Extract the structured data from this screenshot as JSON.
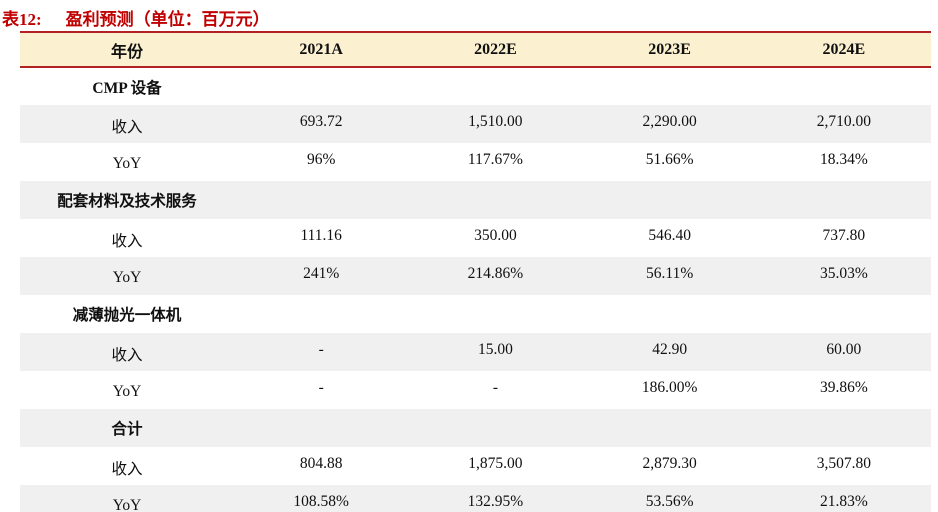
{
  "title": {
    "tag": "表12:",
    "text": "盈利预测（单位：百万元）"
  },
  "colors": {
    "title_red": "#C00000",
    "rule_red": "#B22222",
    "header_beige": "#FBF0D0",
    "stripe_gray": "#F0F0F0",
    "text": "#101010"
  },
  "table": {
    "columns": [
      "年份",
      "2021A",
      "2022E",
      "2023E",
      "2024E"
    ],
    "rows": [
      {
        "type": "section",
        "label": "CMP 设备",
        "values": [
          "",
          "",
          "",
          ""
        ]
      },
      {
        "type": "data",
        "label": "收入",
        "values": [
          "693.72",
          "1,510.00",
          "2,290.00",
          "2,710.00"
        ]
      },
      {
        "type": "data",
        "label": "YoY",
        "values": [
          "96%",
          "117.67%",
          "51.66%",
          "18.34%"
        ]
      },
      {
        "type": "section",
        "label": "配套材料及技术服务",
        "values": [
          "",
          "",
          "",
          ""
        ]
      },
      {
        "type": "data",
        "label": "收入",
        "values": [
          "111.16",
          "350.00",
          "546.40",
          "737.80"
        ]
      },
      {
        "type": "data",
        "label": "YoY",
        "values": [
          "241%",
          "214.86%",
          "56.11%",
          "35.03%"
        ]
      },
      {
        "type": "section",
        "label": "减薄抛光一体机",
        "values": [
          "",
          "",
          "",
          ""
        ]
      },
      {
        "type": "data",
        "label": "收入",
        "values": [
          "-",
          "15.00",
          "42.90",
          "60.00"
        ]
      },
      {
        "type": "data",
        "label": "YoY",
        "values": [
          "-",
          "-",
          "186.00%",
          "39.86%"
        ]
      },
      {
        "type": "section",
        "label": "合计",
        "values": [
          "",
          "",
          "",
          ""
        ]
      },
      {
        "type": "data",
        "label": "收入",
        "values": [
          "804.88",
          "1,875.00",
          "2,879.30",
          "3,507.80"
        ]
      },
      {
        "type": "data",
        "label": "YoY",
        "values": [
          "108.58%",
          "132.95%",
          "53.56%",
          "21.83%"
        ]
      }
    ]
  }
}
